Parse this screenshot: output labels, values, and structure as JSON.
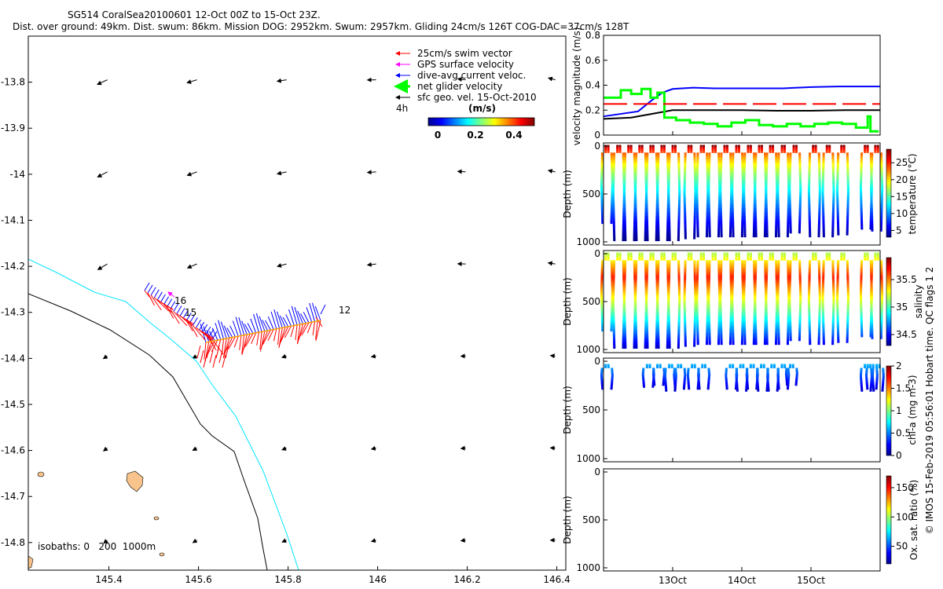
{
  "title": {
    "line1": "SG514 CoralSea20100601 12-Oct 00Z to 15-Oct 23Z.",
    "line2": "Dist. over ground: 49km. Dist. swum: 86km. Mission DOG: 2952km. Swum: 2957km. Gliding 24cm/s 126T COG-DAC=37cm/s 128T"
  },
  "credit": "© IMOS 15-Feb-2019 05:56:01 Hobart time. QC flags 1 2",
  "colors": {
    "swim": "#ff0000",
    "gps": "#ff00ff",
    "dac": "#0000ff",
    "net": "#00ff00",
    "sfc": "#000000",
    "isobath_0": "#000000",
    "isobath_200": "#00e5ff",
    "land": "#f9c48c"
  },
  "map": {
    "xticks": [
      "145.4",
      "145.6",
      "145.8",
      "146",
      "146.2",
      "146.4"
    ],
    "yticks": [
      "-13.8",
      "-13.9",
      "-14",
      "-14.1",
      "-14.2",
      "-14.3",
      "-14.4",
      "-14.5",
      "-14.6",
      "-14.7",
      "-14.8"
    ],
    "xlim": [
      145.22,
      146.42
    ],
    "ylim": [
      -14.86,
      -13.7
    ],
    "legend": [
      "25cm/s swim vector",
      "GPS surface velocity",
      "dive-avg current veloc.",
      "net glider velocity",
      "sfc geo. vel. 15-Oct-2010"
    ],
    "legend_extra": "4h",
    "colorbar_label": "(m/s)",
    "colorbar_ticks": [
      "0",
      "0.2",
      "0.4"
    ],
    "day_labels": [
      "16",
      "15",
      "12"
    ],
    "isobaths_label": "isobaths: 0   200  1000m"
  },
  "chart_data": [
    {
      "type": "line",
      "title": "",
      "xlabel": "",
      "ylabel": "velocity magnitude (m/s)",
      "ylim": [
        0,
        0.8
      ],
      "yticks": [
        "0",
        "0.2",
        "0.4",
        "0.6",
        "0.8"
      ],
      "x_ticks": [
        "13Oct",
        "14Oct",
        "15Oct"
      ],
      "series": [
        {
          "name": "dive-avg current veloc.",
          "color": "#0000ff",
          "x": [
            12.0,
            12.5,
            12.7,
            12.85,
            13.0,
            13.3,
            13.6,
            14.0,
            14.6,
            15.0,
            15.4,
            15.8,
            16.0
          ],
          "values": [
            0.15,
            0.19,
            0.28,
            0.34,
            0.37,
            0.38,
            0.375,
            0.375,
            0.375,
            0.385,
            0.39,
            0.39,
            0.39
          ]
        },
        {
          "name": "sfc geo. vel. 15-Oct-2010",
          "color": "#000000",
          "x": [
            12.0,
            12.4,
            12.7,
            13.0,
            13.3,
            13.7,
            14.0,
            14.5,
            15.0,
            15.5,
            16.0
          ],
          "values": [
            0.13,
            0.14,
            0.17,
            0.2,
            0.2,
            0.2,
            0.2,
            0.195,
            0.195,
            0.2,
            0.2
          ]
        },
        {
          "name": "net glider velocity",
          "color": "#00ff00",
          "x": [
            12.0,
            12.25,
            12.25,
            12.4,
            12.4,
            12.55,
            12.55,
            12.68,
            12.68,
            12.78,
            12.78,
            12.88,
            12.88,
            13.05,
            13.05,
            13.25,
            13.25,
            13.45,
            13.45,
            13.65,
            13.65,
            13.85,
            13.85,
            14.05,
            14.05,
            14.25,
            14.25,
            14.45,
            14.45,
            14.65,
            14.65,
            14.85,
            14.85,
            15.05,
            15.05,
            15.25,
            15.25,
            15.45,
            15.45,
            15.65,
            15.65,
            15.82,
            15.82,
            15.86,
            15.86,
            15.98
          ],
          "values": [
            0.3,
            0.3,
            0.36,
            0.36,
            0.33,
            0.33,
            0.37,
            0.37,
            0.3,
            0.3,
            0.34,
            0.34,
            0.14,
            0.14,
            0.12,
            0.12,
            0.1,
            0.1,
            0.09,
            0.09,
            0.07,
            0.07,
            0.1,
            0.1,
            0.12,
            0.12,
            0.08,
            0.08,
            0.07,
            0.07,
            0.09,
            0.09,
            0.07,
            0.07,
            0.09,
            0.09,
            0.1,
            0.1,
            0.09,
            0.09,
            0.06,
            0.06,
            0.15,
            0.15,
            0.03,
            0.03
          ]
        },
        {
          "name": "25cm/s swim vector",
          "color": "#ff0000",
          "dashed": true,
          "x": [
            12.0,
            16.0
          ],
          "values": [
            0.25,
            0.25
          ]
        }
      ]
    },
    {
      "type": "scatter",
      "ylabel": "Depth (m)",
      "ylim": [
        1000,
        0
      ],
      "yticks": [
        "0",
        "500",
        "1000"
      ],
      "colorbar_label": "temperature (°C)",
      "colorbar_ticks": [
        "25",
        "20",
        "15",
        "10",
        "5"
      ],
      "clim": [
        3,
        29
      ],
      "profile_top": 0,
      "profiles": [
        {
          "t": 12.05,
          "max_depth": 800
        },
        {
          "t": 12.22,
          "max_depth": 980
        },
        {
          "t": 12.38,
          "max_depth": 980
        },
        {
          "t": 12.54,
          "max_depth": 980
        },
        {
          "t": 12.7,
          "max_depth": 980
        },
        {
          "t": 12.86,
          "max_depth": 980
        },
        {
          "t": 13.02,
          "max_depth": 980
        },
        {
          "t": 13.25,
          "max_depth": 960
        },
        {
          "t": 13.43,
          "max_depth": 950
        },
        {
          "t": 13.6,
          "max_depth": 950
        },
        {
          "t": 13.77,
          "max_depth": 950
        },
        {
          "t": 13.94,
          "max_depth": 950
        },
        {
          "t": 14.11,
          "max_depth": 950
        },
        {
          "t": 14.27,
          "max_depth": 950
        },
        {
          "t": 14.43,
          "max_depth": 950
        },
        {
          "t": 14.6,
          "max_depth": 950
        },
        {
          "t": 14.77,
          "max_depth": 900
        },
        {
          "t": 15.05,
          "max_depth": 950
        },
        {
          "t": 15.25,
          "max_depth": 950
        },
        {
          "t": 15.46,
          "max_depth": 930
        },
        {
          "t": 15.8,
          "max_depth": 860
        },
        {
          "t": 15.95,
          "max_depth": 880
        }
      ]
    },
    {
      "type": "scatter",
      "ylabel": "Depth (m)",
      "ylim": [
        1000,
        0
      ],
      "yticks": [
        "0",
        "500",
        "1000"
      ],
      "colorbar_label": "salinity",
      "colorbar_ticks": [
        "35.5",
        "35",
        "34.5"
      ],
      "clim": [
        34.3,
        35.9
      ],
      "profile_top": 0,
      "profiles": [
        {
          "t": 12.05,
          "max_depth": 800
        },
        {
          "t": 12.22,
          "max_depth": 980
        },
        {
          "t": 12.38,
          "max_depth": 980
        },
        {
          "t": 12.54,
          "max_depth": 980
        },
        {
          "t": 12.7,
          "max_depth": 980
        },
        {
          "t": 12.86,
          "max_depth": 980
        },
        {
          "t": 13.02,
          "max_depth": 980
        },
        {
          "t": 13.25,
          "max_depth": 960
        },
        {
          "t": 13.43,
          "max_depth": 950
        },
        {
          "t": 13.6,
          "max_depth": 950
        },
        {
          "t": 13.77,
          "max_depth": 950
        },
        {
          "t": 13.94,
          "max_depth": 950
        },
        {
          "t": 14.11,
          "max_depth": 950
        },
        {
          "t": 14.27,
          "max_depth": 950
        },
        {
          "t": 14.43,
          "max_depth": 950
        },
        {
          "t": 14.6,
          "max_depth": 950
        },
        {
          "t": 14.77,
          "max_depth": 900
        },
        {
          "t": 15.05,
          "max_depth": 950
        },
        {
          "t": 15.25,
          "max_depth": 950
        },
        {
          "t": 15.46,
          "max_depth": 930
        },
        {
          "t": 15.8,
          "max_depth": 860
        },
        {
          "t": 15.95,
          "max_depth": 880
        }
      ]
    },
    {
      "type": "scatter",
      "ylabel": "Depth (m)",
      "ylim": [
        1000,
        0
      ],
      "yticks": [
        "0",
        "500",
        "1000"
      ],
      "colorbar_label": "chl-a (mg m-3)",
      "colorbar_ticks": [
        "2",
        "1.5",
        "1",
        "0.5",
        "0"
      ],
      "clim": [
        0,
        2
      ],
      "profile_top": 40,
      "profiles": [
        {
          "t": 12.05,
          "max_depth": 290
        },
        {
          "t": 12.65,
          "max_depth": 270
        },
        {
          "t": 12.8,
          "max_depth": 250
        },
        {
          "t": 12.97,
          "max_depth": 300
        },
        {
          "t": 13.1,
          "max_depth": 280
        },
        {
          "t": 13.3,
          "max_depth": 290
        },
        {
          "t": 13.45,
          "max_depth": 280
        },
        {
          "t": 13.85,
          "max_depth": 290
        },
        {
          "t": 14.0,
          "max_depth": 300
        },
        {
          "t": 14.15,
          "max_depth": 280
        },
        {
          "t": 14.3,
          "max_depth": 300
        },
        {
          "t": 14.45,
          "max_depth": 300
        },
        {
          "t": 14.6,
          "max_depth": 290
        },
        {
          "t": 14.72,
          "max_depth": 250
        },
        {
          "t": 15.8,
          "max_depth": 300
        },
        {
          "t": 15.88,
          "max_depth": 290
        },
        {
          "t": 15.97,
          "max_depth": 300
        }
      ]
    },
    {
      "type": "scatter",
      "ylabel": "Depth (m)",
      "ylim": [
        1000,
        0
      ],
      "yticks": [
        "0",
        "500",
        "1000"
      ],
      "colorbar_label": "Ox. sat. ratio (%)",
      "colorbar_ticks": [
        "150",
        "100",
        "50"
      ],
      "clim": [
        20,
        170
      ],
      "profiles": []
    }
  ]
}
